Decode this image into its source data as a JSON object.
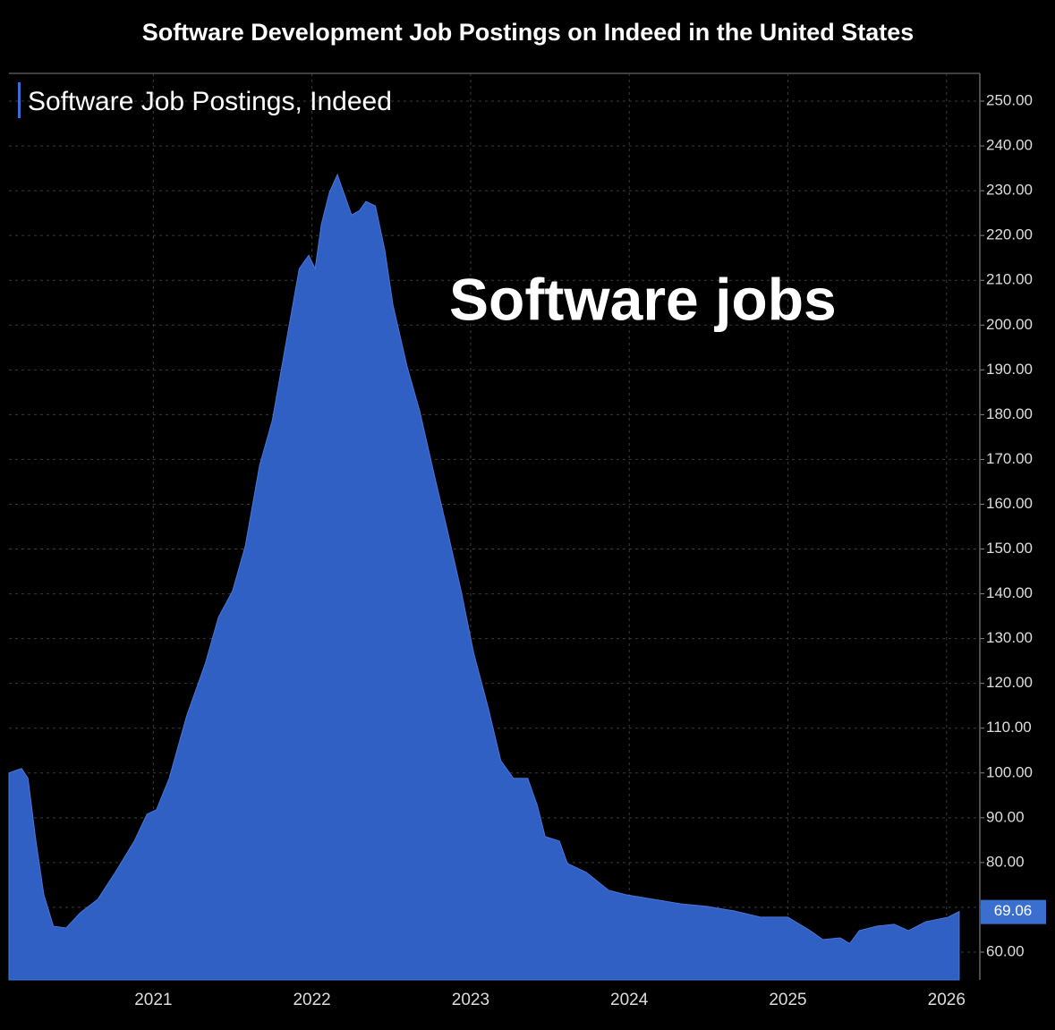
{
  "chart_data": {
    "type": "area",
    "title": "Software Development Job Postings on Indeed in the United States",
    "annotation": "Software jobs",
    "x": [
      2020.09,
      2020.17,
      2020.21,
      2020.26,
      2020.31,
      2020.37,
      2020.45,
      2020.54,
      2020.65,
      2020.76,
      2020.88,
      2020.96,
      2021.02,
      2021.1,
      2021.21,
      2021.33,
      2021.41,
      2021.5,
      2021.58,
      2021.67,
      2021.75,
      2021.84,
      2021.92,
      2021.98,
      2022.02,
      2022.06,
      2022.11,
      2022.16,
      2022.2,
      2022.25,
      2022.3,
      2022.34,
      2022.4,
      2022.46,
      2022.51,
      2022.6,
      2022.68,
      2022.77,
      2022.85,
      2022.94,
      2023.02,
      2023.11,
      2023.19,
      2023.27,
      2023.36,
      2023.42,
      2023.47,
      2023.56,
      2023.61,
      2023.73,
      2023.87,
      2023.98,
      2024.15,
      2024.32,
      2024.49,
      2024.66,
      2024.83,
      2025.0,
      2025.14,
      2025.22,
      2025.33,
      2025.39,
      2025.45,
      2025.56,
      2025.67,
      2025.76,
      2025.87,
      2026.01,
      2026.08
    ],
    "series": [
      {
        "name": "Software Job Postings, Indeed",
        "color": "#3160c4",
        "values": [
          100,
          101,
          98.8,
          84.8,
          72.8,
          65.8,
          65.4,
          68.8,
          71.8,
          77.8,
          84.8,
          90.8,
          91.8,
          98.8,
          112.7,
          124.7,
          134.7,
          140.7,
          150.7,
          168.7,
          178.7,
          196.7,
          212.6,
          215.6,
          212.6,
          222.6,
          229.6,
          233.6,
          229.6,
          224.6,
          225.6,
          227.6,
          226.6,
          216.6,
          204.6,
          190.7,
          180.7,
          166.7,
          154.7,
          140.7,
          126.7,
          114.7,
          102.8,
          98.8,
          98.8,
          92.8,
          85.8,
          84.8,
          79.8,
          77.8,
          73.8,
          72.8,
          71.8,
          70.8,
          70.2,
          69.2,
          67.8,
          67.8,
          64.8,
          62.8,
          63.2,
          61.9,
          64.8,
          65.8,
          66.2,
          64.8,
          66.8,
          67.8,
          69.06
        ]
      }
    ],
    "xlim": [
      2020.09,
      2026.21
    ],
    "xticks": [
      2021,
      2022,
      2023,
      2024,
      2025,
      2026
    ],
    "ylim": [
      53.8,
      256.2
    ],
    "yticks": [
      {
        "value": 60,
        "label": "60.00"
      },
      {
        "value": 70,
        "label": "70.00"
      },
      {
        "value": 80,
        "label": "80.00"
      },
      {
        "value": 90,
        "label": "90.00"
      },
      {
        "value": 100,
        "label": "100.00"
      },
      {
        "value": 110,
        "label": "110.00"
      },
      {
        "value": 120,
        "label": "120.00"
      },
      {
        "value": 130,
        "label": "130.00"
      },
      {
        "value": 140,
        "label": "140.00"
      },
      {
        "value": 150,
        "label": "150.00"
      },
      {
        "value": 160,
        "label": "160.00"
      },
      {
        "value": 170,
        "label": "170.00"
      },
      {
        "value": 180,
        "label": "180.00"
      },
      {
        "value": 190,
        "label": "190.00"
      },
      {
        "value": 200,
        "label": "200.00"
      },
      {
        "value": 210,
        "label": "210.00"
      },
      {
        "value": 220,
        "label": "220.00"
      },
      {
        "value": 230,
        "label": "230.00"
      },
      {
        "value": 240,
        "label": "240.00"
      },
      {
        "value": 250,
        "label": "250.00"
      }
    ],
    "grid": true,
    "legend": "top-left"
  }
}
